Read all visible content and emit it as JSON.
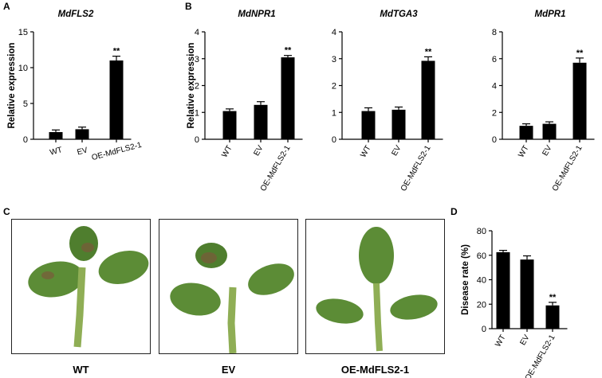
{
  "panels": {
    "a": "A",
    "b": "B",
    "c": "C",
    "d": "D"
  },
  "chart_data": [
    {
      "type": "bar",
      "panel": "A",
      "title": "MdFLS2",
      "ylabel": "Relative expression",
      "xlabel": "",
      "categories": [
        "WT",
        "EV",
        "OE-MdFLS2-1"
      ],
      "values": [
        1.0,
        1.4,
        11.0
      ],
      "errors": [
        0.3,
        0.3,
        0.6
      ],
      "ylim": [
        0,
        15
      ],
      "yticks": [
        "0",
        "5",
        "10",
        "15"
      ],
      "annotations": [
        "",
        "",
        "**"
      ],
      "x_rotated": false,
      "color": "#000000"
    },
    {
      "type": "bar",
      "panel": "B",
      "title": "MdNPR1",
      "ylabel": "Relative expression",
      "xlabel": "",
      "categories": [
        "WT",
        "EV",
        "OE-MdFLS2-1"
      ],
      "values": [
        1.05,
        1.28,
        3.05
      ],
      "errors": [
        0.08,
        0.12,
        0.07
      ],
      "ylim": [
        0,
        4
      ],
      "yticks": [
        "0",
        "1",
        "2",
        "3",
        "4"
      ],
      "annotations": [
        "",
        "",
        "**"
      ],
      "x_rotated": true,
      "color": "#000000"
    },
    {
      "type": "bar",
      "panel": "B",
      "title": "MdTGA3",
      "ylabel": "",
      "xlabel": "",
      "categories": [
        "WT",
        "EV",
        "OE-MdFLS2-1"
      ],
      "values": [
        1.05,
        1.1,
        2.92
      ],
      "errors": [
        0.12,
        0.1,
        0.15
      ],
      "ylim": [
        0,
        4
      ],
      "yticks": [
        "0",
        "1",
        "2",
        "3",
        "4"
      ],
      "annotations": [
        "",
        "",
        "**"
      ],
      "x_rotated": true,
      "color": "#000000"
    },
    {
      "type": "bar",
      "panel": "B",
      "title": "MdPR1",
      "ylabel": "",
      "xlabel": "",
      "categories": [
        "WT",
        "EV",
        "OE-MdFLS2-1"
      ],
      "values": [
        1.0,
        1.15,
        5.7
      ],
      "errors": [
        0.15,
        0.15,
        0.35
      ],
      "ylim": [
        0,
        8
      ],
      "yticks": [
        "0",
        "2",
        "4",
        "6",
        "8"
      ],
      "annotations": [
        "",
        "",
        "**"
      ],
      "x_rotated": true,
      "color": "#000000"
    },
    {
      "type": "bar",
      "panel": "D",
      "title": "",
      "ylabel": "Disease rate (%)",
      "xlabel": "",
      "categories": [
        "WT",
        "EV",
        "OE-MdFLS2-1"
      ],
      "values": [
        62.5,
        56.5,
        19.0
      ],
      "errors": [
        1.5,
        3.0,
        2.5
      ],
      "ylim": [
        0,
        80
      ],
      "yticks": [
        "0",
        "20",
        "40",
        "60",
        "80"
      ],
      "annotations": [
        "",
        "",
        "**"
      ],
      "x_rotated": true,
      "color": "#000000"
    }
  ],
  "photos": [
    {
      "label": "WT"
    },
    {
      "label": "EV"
    },
    {
      "label": "OE-MdFLS2-1"
    }
  ],
  "colors": {
    "leaf": "#5c8c36",
    "leaf_dark": "#3f6a26",
    "lesion": "#7a5a3a",
    "stem": "#8fae55"
  }
}
